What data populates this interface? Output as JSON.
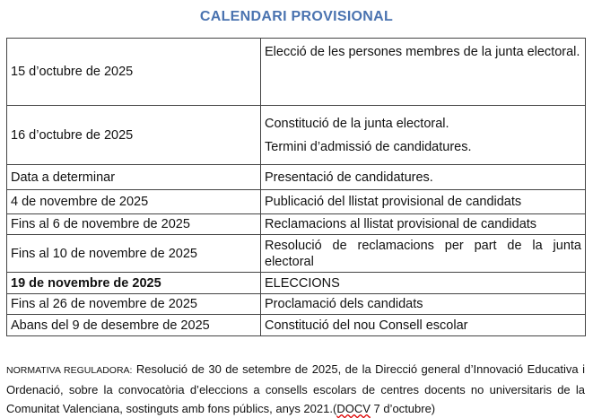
{
  "title": "CALENDARI PROVISIONAL",
  "rows": [
    {
      "date": "15 d’octubre de 2025",
      "events": [
        "Elecció de les persones membres de la junta electoral."
      ]
    },
    {
      "date": "16 d’octubre de 2025",
      "events": [
        "Constitució de la junta electoral.",
        "Termini d’admissió de candidatures."
      ]
    },
    {
      "date": "Data a determinar",
      "events": [
        "Presentació de candidatures."
      ]
    },
    {
      "date": "4 de novembre de 2025",
      "events": [
        "Publicació del llistat provisional de candidats"
      ]
    },
    {
      "date": "Fins al 6 de novembre de 2025",
      "events": [
        "Reclamacions al llistat provisional de candidats"
      ]
    },
    {
      "date": "Fins al 10 de novembre de 2025",
      "events": [
        "Resolució de reclamacions per part de la junta electoral"
      ]
    },
    {
      "date": "19 de novembre de 2025",
      "events": [
        "ELECCIONS"
      ],
      "bold": true
    },
    {
      "date": "Fins al 26 de novembre de 2025",
      "events": [
        "Proclamació dels candidats"
      ]
    },
    {
      "date": "Abans del 9 de desembre de 2025",
      "events": [
        "Constitució del nou Consell escolar"
      ]
    }
  ],
  "note": {
    "label": "NORMATIVA REGULADORA:",
    "text": " Resolució de 30 de setembre de 2025, de la Direcció general d’Innovació Educativa i Ordenació, sobre la convocatòria d’eleccions a consells escolars de centres docents no universitaris de la Comunitat Valenciana, sostinguts amb fons públics, anys 2021.(",
    "docv": "DOCV",
    "tail": " 7 d’octubre)"
  }
}
